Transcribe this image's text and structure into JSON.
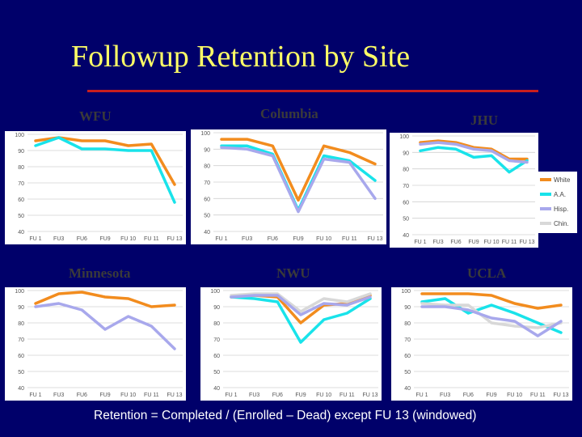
{
  "title": "Followup Retention by Site",
  "footnote": "Retention = Completed / (Enrolled – Dead) except FU 13 (windowed)",
  "colors": {
    "background": "#00006a",
    "title": "#ffff66",
    "rule": "#c81e1e",
    "plot": "#ffffff",
    "grid": "#d0d0d0",
    "white_series": "#f28c1e",
    "aa_series": "#19e3ea",
    "hisp_series": "#a8a8ec",
    "chin_series": "#d8d8d8"
  },
  "chart_data": [
    {
      "type": "line",
      "site_title": "WFU",
      "categories": [
        "FU 1",
        "FU3",
        "FU6",
        "FU9",
        "FU 10",
        "FU 11",
        "FU 13"
      ],
      "ylim": [
        40,
        100
      ],
      "yticks": [
        "40",
        "50",
        "60",
        "70",
        "80",
        "90",
        "100"
      ],
      "grid": true,
      "series": [
        {
          "name": "White",
          "color": "#f28c1e",
          "values": [
            96,
            98,
            96,
            96,
            93,
            94,
            69
          ]
        },
        {
          "name": "A.A.",
          "color": "#19e3ea",
          "values": [
            93,
            98,
            91,
            91,
            90,
            90,
            58
          ]
        }
      ]
    },
    {
      "type": "line",
      "site_title": "Columbia",
      "categories": [
        "FU 1",
        "FU3",
        "FU6",
        "FU9",
        "FU 10",
        "FU 11",
        "FU 13"
      ],
      "ylim": [
        40,
        100
      ],
      "yticks": [
        "40",
        "50",
        "60",
        "70",
        "80",
        "90",
        "100"
      ],
      "grid": true,
      "series": [
        {
          "name": "White",
          "color": "#f28c1e",
          "values": [
            96,
            96,
            92,
            59,
            92,
            88,
            81
          ]
        },
        {
          "name": "A.A.",
          "color": "#19e3ea",
          "values": [
            92,
            92,
            87,
            53,
            86,
            83,
            71
          ]
        },
        {
          "name": "Hisp.",
          "color": "#a8a8ec",
          "values": [
            91,
            90,
            86,
            52,
            84,
            82,
            60
          ]
        }
      ]
    },
    {
      "type": "line",
      "site_title": "JHU",
      "categories": [
        "FU 1",
        "FU3",
        "FU6",
        "FU9",
        "FU 10",
        "FU 11",
        "FU 13"
      ],
      "ylim": [
        40,
        100
      ],
      "yticks": [
        "40",
        "50",
        "60",
        "70",
        "80",
        "90",
        "100"
      ],
      "grid": true,
      "series": [
        {
          "name": "White",
          "color": "#f28c1e",
          "values": [
            96,
            97,
            96,
            93,
            92,
            86,
            86
          ]
        },
        {
          "name": "A.A.",
          "color": "#19e3ea",
          "values": [
            91,
            93,
            92,
            87,
            88,
            78,
            85
          ]
        },
        {
          "name": "Hisp.",
          "color": "#a8a8ec",
          "values": [
            95,
            96,
            95,
            92,
            91,
            85,
            84
          ]
        }
      ],
      "legend": {
        "placement": "right",
        "entries": [
          {
            "label": "White",
            "color": "#f28c1e"
          },
          {
            "label": "A.A.",
            "color": "#19e3ea"
          },
          {
            "label": "Hisp.",
            "color": "#a8a8ec"
          },
          {
            "label": "Chin.",
            "color": "#d8d8d8"
          }
        ]
      }
    },
    {
      "type": "line",
      "site_title": "Minnesota",
      "categories": [
        "FU 1",
        "FU3",
        "FU6",
        "FU9",
        "FU 10",
        "FU 11",
        "FU 13"
      ],
      "ylim": [
        40,
        100
      ],
      "yticks": [
        "40",
        "50",
        "60",
        "70",
        "80",
        "90",
        "100"
      ],
      "grid": true,
      "series": [
        {
          "name": "White",
          "color": "#f28c1e",
          "values": [
            92,
            98,
            99,
            96,
            95,
            90,
            91
          ]
        },
        {
          "name": "Hisp.",
          "color": "#a8a8ec",
          "values": [
            90,
            92,
            88,
            76,
            84,
            78,
            64
          ]
        }
      ]
    },
    {
      "type": "line",
      "site_title": "NWU",
      "categories": [
        "FU 1",
        "FU3",
        "FU6",
        "FU9",
        "FU 10",
        "FU 11",
        "FU 13"
      ],
      "ylim": [
        40,
        100
      ],
      "yticks": [
        "40",
        "50",
        "60",
        "70",
        "80",
        "90",
        "100"
      ],
      "grid": true,
      "series": [
        {
          "name": "White",
          "color": "#f28c1e",
          "values": [
            96,
            97,
            96,
            80,
            91,
            92,
            97
          ]
        },
        {
          "name": "A.A.",
          "color": "#19e3ea",
          "values": [
            96,
            95,
            93,
            68,
            82,
            86,
            95
          ]
        },
        {
          "name": "Chin.",
          "color": "#d8d8d8",
          "values": [
            97,
            98,
            98,
            87,
            95,
            93,
            98
          ]
        },
        {
          "name": "Hisp.",
          "color": "#a8a8ec",
          "values": [
            96,
            97,
            97,
            85,
            92,
            91,
            96
          ]
        }
      ]
    },
    {
      "type": "line",
      "site_title": "UCLA",
      "categories": [
        "FU 1",
        "FU3",
        "FU6",
        "FU9",
        "FU 10",
        "FU 11",
        "FU 13"
      ],
      "ylim": [
        40,
        100
      ],
      "yticks": [
        "40",
        "50",
        "60",
        "70",
        "80",
        "90",
        "100"
      ],
      "grid": true,
      "series": [
        {
          "name": "White",
          "color": "#f28c1e",
          "values": [
            98,
            98,
            98,
            97,
            92,
            89,
            91
          ]
        },
        {
          "name": "A.A.",
          "color": "#19e3ea",
          "values": [
            93,
            95,
            86,
            91,
            86,
            80,
            74
          ]
        },
        {
          "name": "Chin.",
          "color": "#d8d8d8",
          "values": [
            92,
            91,
            91,
            80,
            78,
            77,
            80
          ]
        },
        {
          "name": "Hisp.",
          "color": "#a8a8ec",
          "values": [
            90,
            90,
            88,
            83,
            81,
            72,
            81
          ]
        }
      ]
    }
  ]
}
